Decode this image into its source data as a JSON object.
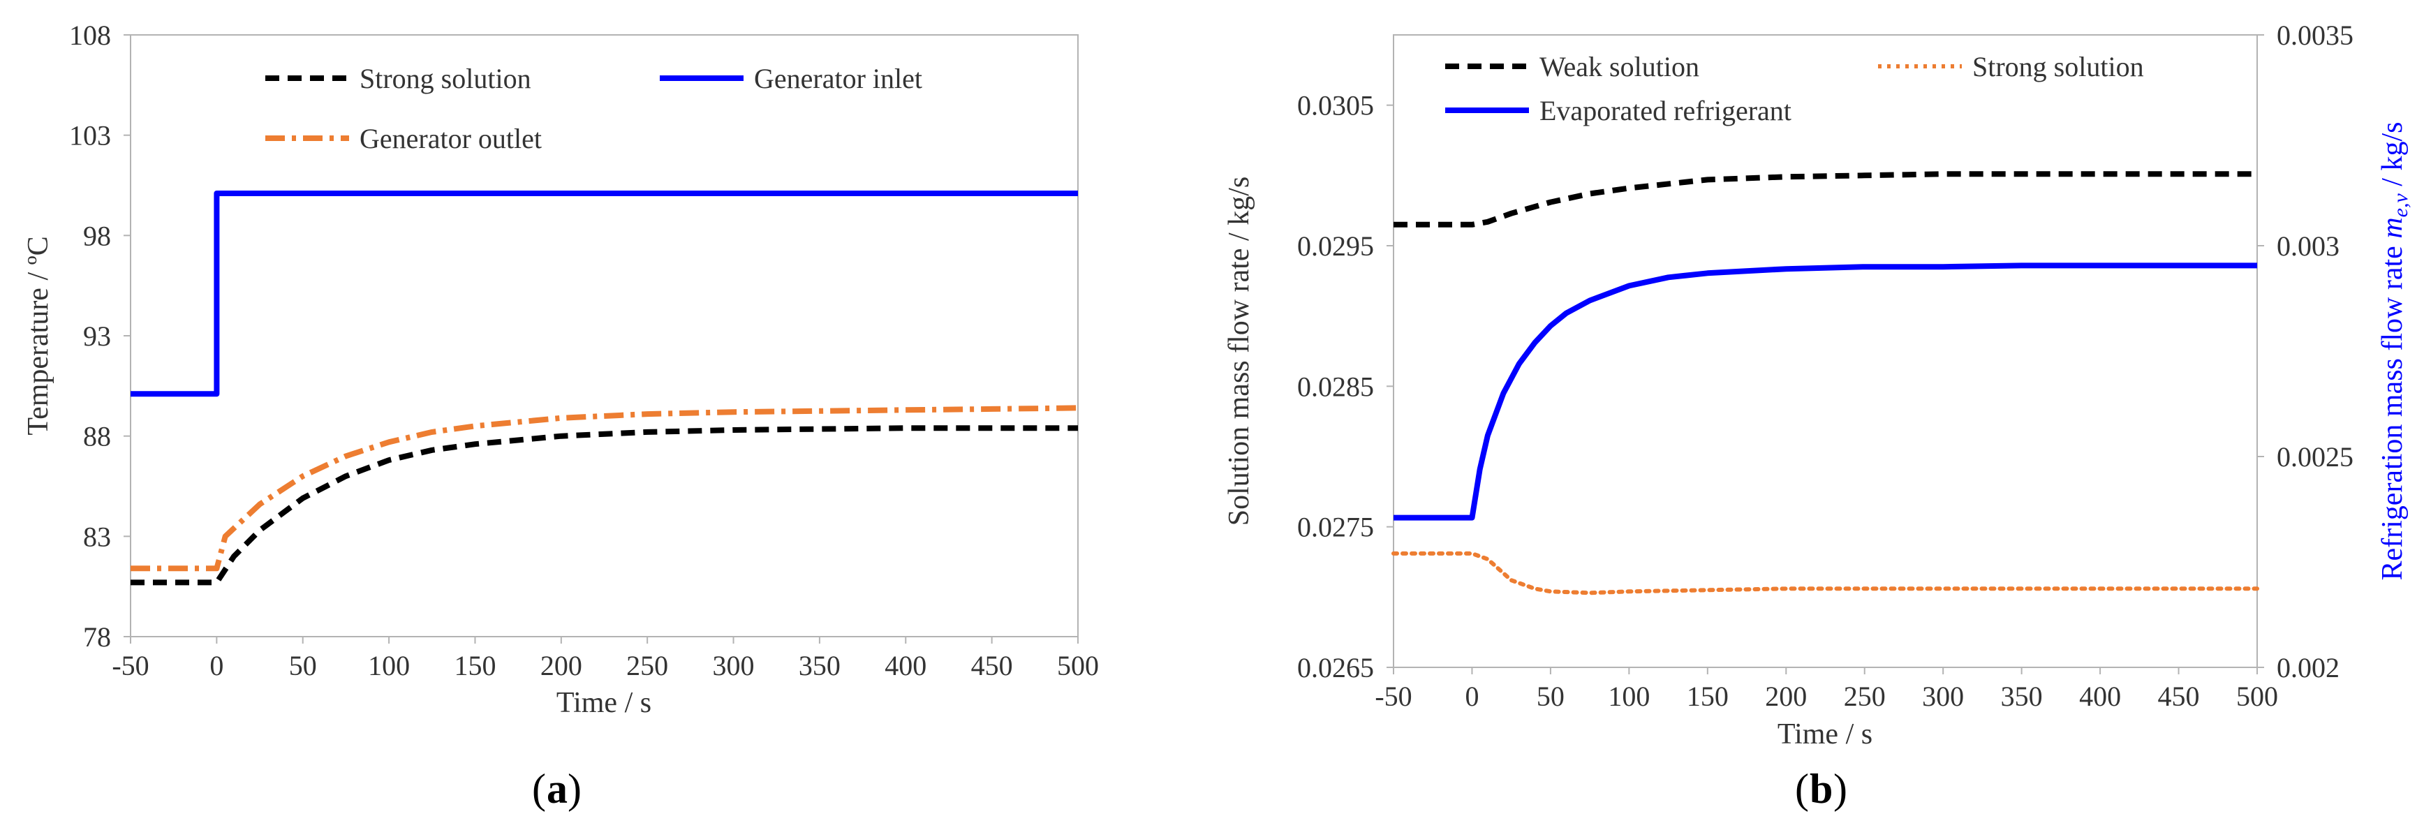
{
  "chart_data": [
    {
      "id": "a",
      "type": "line",
      "panel_label": "a",
      "xlabel": "Time / s",
      "ylabel": "Temperature / ºC",
      "xlim": [
        -50,
        500
      ],
      "ylim": [
        78,
        108
      ],
      "xticks": [
        "-50",
        "0",
        "50",
        "100",
        "150",
        "200",
        "250",
        "300",
        "350",
        "400",
        "450",
        "500"
      ],
      "yticks": [
        "78",
        "83",
        "88",
        "93",
        "98",
        "103",
        "108"
      ],
      "legend": [
        "Strong solution",
        "Generator inlet",
        "Generator outlet"
      ],
      "series": [
        {
          "name": "Strong solution",
          "color": "#000000",
          "dash": "dashed",
          "x": [
            -50,
            0,
            10,
            25,
            50,
            75,
            100,
            125,
            150,
            200,
            250,
            300,
            350,
            400,
            450,
            500
          ],
          "y": [
            80.7,
            80.7,
            82.0,
            83.3,
            84.9,
            86.0,
            86.8,
            87.3,
            87.6,
            88.0,
            88.2,
            88.3,
            88.35,
            88.4,
            88.4,
            88.4
          ]
        },
        {
          "name": "Generator inlet",
          "color": "#0000ff",
          "dash": "solid",
          "x": [
            -50,
            0,
            0,
            500
          ],
          "y": [
            90.1,
            90.1,
            100.1,
            100.1
          ]
        },
        {
          "name": "Generator outlet",
          "color": "#ed7d31",
          "dash": "dashdot",
          "x": [
            -50,
            0,
            5,
            25,
            50,
            75,
            100,
            125,
            150,
            200,
            250,
            300,
            350,
            400,
            450,
            500
          ],
          "y": [
            81.4,
            81.4,
            83.0,
            84.6,
            86.0,
            87.0,
            87.7,
            88.2,
            88.5,
            88.9,
            89.1,
            89.2,
            89.25,
            89.3,
            89.35,
            89.4
          ]
        }
      ]
    },
    {
      "id": "b",
      "type": "line",
      "panel_label": "b",
      "xlabel": "Time / s",
      "ylabel": "Solution mass flow rate / kg/s",
      "y2label_prefix": "Refrigeration mass flow rate ",
      "y2label_symbol": "m",
      "y2label_subscript": "e,v",
      "y2label_suffix": " / kg/s",
      "xlim": [
        -50,
        500
      ],
      "ylim": [
        0.0265,
        0.031
      ],
      "y2lim": [
        0.002,
        0.0035
      ],
      "xticks": [
        "-50",
        "0",
        "50",
        "100",
        "150",
        "200",
        "250",
        "300",
        "350",
        "400",
        "450",
        "500"
      ],
      "yticks": [
        "0.0265",
        "0.0275",
        "0.0285",
        "0.0295",
        "0.0305"
      ],
      "y2ticks": [
        "0.002",
        "0.0025",
        "0.003",
        "0.0035"
      ],
      "legend": [
        "Weak solution",
        "Strong solution",
        "Evaporated refrigerant"
      ],
      "series": [
        {
          "name": "Weak solution",
          "axis": "left",
          "color": "#000000",
          "dash": "dashed",
          "x": [
            -50,
            0,
            10,
            25,
            50,
            75,
            100,
            150,
            200,
            250,
            300,
            350,
            400,
            450,
            500
          ],
          "y": [
            0.02965,
            0.02965,
            0.02967,
            0.02973,
            0.02981,
            0.02987,
            0.02991,
            0.02997,
            0.02999,
            0.03,
            0.03001,
            0.03001,
            0.03001,
            0.03001,
            0.03001
          ]
        },
        {
          "name": "Strong solution",
          "axis": "left",
          "color": "#ed7d31",
          "dash": "dotted",
          "x": [
            -50,
            0,
            10,
            25,
            40,
            50,
            75,
            100,
            150,
            200,
            250,
            300,
            350,
            400,
            450,
            500
          ],
          "y": [
            0.02731,
            0.02731,
            0.02727,
            0.02712,
            0.02706,
            0.02704,
            0.02703,
            0.02704,
            0.02705,
            0.02706,
            0.02706,
            0.02706,
            0.02706,
            0.02706,
            0.02706,
            0.02706
          ]
        },
        {
          "name": "Evaporated refrigerant",
          "axis": "right",
          "color": "#0000ff",
          "dash": "solid",
          "x": [
            -50,
            0,
            5,
            10,
            20,
            30,
            40,
            50,
            60,
            75,
            100,
            125,
            150,
            200,
            250,
            300,
            350,
            400,
            450,
            500
          ],
          "y": [
            0.002355,
            0.002355,
            0.00247,
            0.00255,
            0.00265,
            0.00272,
            0.00277,
            0.00281,
            0.00284,
            0.00287,
            0.002905,
            0.002925,
            0.002935,
            0.002945,
            0.00295,
            0.00295,
            0.002953,
            0.002953,
            0.002953,
            0.002953
          ]
        }
      ]
    }
  ]
}
